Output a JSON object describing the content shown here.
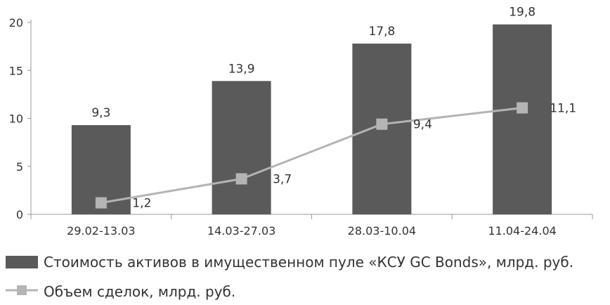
{
  "chart_data": {
    "type": "bar",
    "categories": [
      "29.02-13.03",
      "14.03-27.03",
      "28.03-10.04",
      "11.04-24.04"
    ],
    "ylim": [
      0,
      20
    ],
    "yticks": [
      "0",
      "5",
      "10",
      "15",
      "20"
    ],
    "grid": false,
    "legend_position": "bottom",
    "series": [
      {
        "name": "Стоимость активов в имущественном пуле «КСУ GC Bonds», млрд. руб.",
        "kind": "bar",
        "color": "#5a5a5a",
        "values": [
          9.3,
          13.9,
          17.8,
          19.8
        ],
        "labels": [
          "9,3",
          "13,9",
          "17,8",
          "19,8"
        ]
      },
      {
        "name": "Объем сделок, млрд. руб.",
        "kind": "line",
        "color": "#b4b4b4",
        "values": [
          1.2,
          3.7,
          9.4,
          11.1
        ],
        "labels": [
          "1,2",
          "3,7",
          "9,4",
          "11,1"
        ]
      }
    ]
  }
}
